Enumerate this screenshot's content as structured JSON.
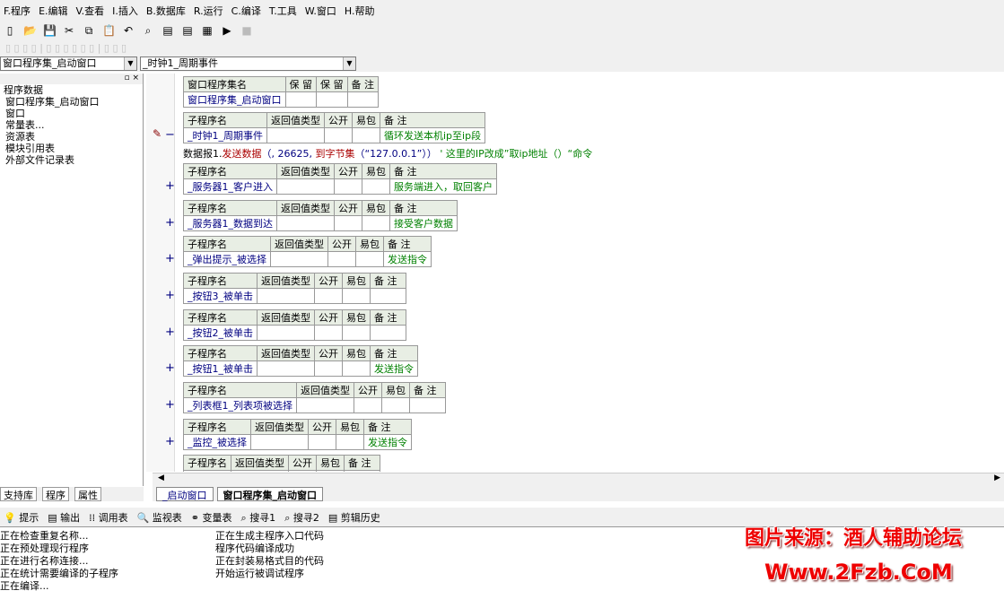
{
  "menu": [
    "F.程序",
    "E.编辑",
    "V.查看",
    "I.插入",
    "B.数据库",
    "R.运行",
    "C.编译",
    "T.工具",
    "W.窗口",
    "H.帮助"
  ],
  "combos": {
    "left": "窗口程序集_启动窗口",
    "right": "_时钟1_周期事件"
  },
  "tree": [
    "程序数据",
    "窗口程序集_启动窗口",
    "窗口",
    "常量表...",
    "资源表",
    "模块引用表",
    "外部文件记录表"
  ],
  "left_tabs": [
    "支持库",
    "程序",
    "属性"
  ],
  "assembly": {
    "headers": [
      "窗口程序集名",
      "保 留",
      "保 留",
      "备 注"
    ],
    "name": "窗口程序集_启动窗口"
  },
  "sub_headers": [
    "子程序名",
    "返回值类型",
    "公开",
    "易包",
    "备 注"
  ],
  "subs": [
    {
      "name": "_时钟1_周期事件",
      "note": "循环发送本机ip至ip段",
      "expanded": true
    },
    {
      "name": "_服务器1_客户进入",
      "note": "服务端进入，取回客户"
    },
    {
      "name": "_服务器1_数据到达",
      "note": "接受客户数据"
    },
    {
      "name": "_弹出提示_被选择",
      "note": "发送指令"
    },
    {
      "name": "_按钮3_被单击",
      "note": ""
    },
    {
      "name": "_按钮2_被单击",
      "note": ""
    },
    {
      "name": "_按钮1_被单击",
      "note": "发送指令"
    },
    {
      "name": "_列表框1_列表项被选择",
      "note": ""
    },
    {
      "name": "_监控_被选择",
      "note": "发送指令"
    },
    {
      "name": "",
      "note": ""
    }
  ],
  "code": {
    "obj": "数据报1.",
    "fn": "发送数据",
    "args": "（, 26625, ",
    "fn2": "到字节集",
    "args2": "（“127.0.0.1”））",
    "comment": " ' 这里的IP改成”取ip地址（）“命令"
  },
  "doc_tabs": [
    "_启动窗口",
    "窗口程序集_启动窗口"
  ],
  "out_tabs": [
    "提示",
    "输出",
    "调用表",
    "监视表",
    "变量表",
    "搜寻1",
    "搜寻2",
    "剪辑历史"
  ],
  "output": [
    "正在检查重复名称...",
    "正在预处理现行程序",
    "正在进行名称连接...",
    "正在统计需要编译的子程序",
    "正在编译...",
    "正在生成主程序入口代码",
    "程序代码编译成功",
    "正在封装易格式目的代码",
    "开始运行被调试程序"
  ],
  "watermark": {
    "line1": "图片来源：酒人辅助论坛",
    "line2": "Www.2Fzb.CoM"
  }
}
